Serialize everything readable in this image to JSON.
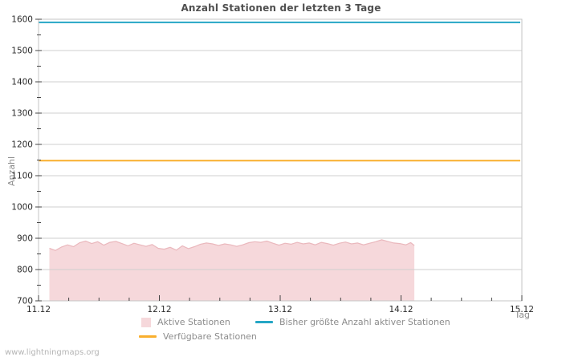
{
  "page": {
    "watermark": "www.lightningmaps.org"
  },
  "chart_data": {
    "type": "area",
    "title": "Anzahl Stationen der letzten 3 Tage",
    "xlabel": "Tag",
    "ylabel": "Anzahl",
    "ylim": [
      700,
      1600
    ],
    "xlim_days": [
      0,
      4
    ],
    "y_tick_step": 100,
    "y_minor_step": 50,
    "x_minor_step_days": 0.25,
    "grid": true,
    "legend_position": "bottom",
    "colors": {
      "grid": "#cfcfcf",
      "border": "#c4c4c4",
      "ticks": "#444444"
    },
    "x_ticks": [
      {
        "day": 0,
        "label": "11.12"
      },
      {
        "day": 1,
        "label": "12.12"
      },
      {
        "day": 2,
        "label": "13.12"
      },
      {
        "day": 3,
        "label": "14.12"
      },
      {
        "day": 4,
        "label": "15.12"
      }
    ],
    "y_ticks": [
      700,
      800,
      900,
      1000,
      1100,
      1200,
      1300,
      1400,
      1500,
      1600
    ],
    "series": [
      {
        "name": "Aktive Stationen",
        "type": "area",
        "color_edge": "#eab8bd",
        "color_fill": "rgba(235,168,175,0.45)",
        "x_days": [
          0.09,
          0.14,
          0.19,
          0.24,
          0.29,
          0.34,
          0.39,
          0.44,
          0.49,
          0.54,
          0.59,
          0.64,
          0.69,
          0.74,
          0.79,
          0.84,
          0.89,
          0.94,
          0.99,
          1.04,
          1.09,
          1.14,
          1.19,
          1.24,
          1.29,
          1.34,
          1.39,
          1.44,
          1.49,
          1.54,
          1.59,
          1.64,
          1.69,
          1.74,
          1.79,
          1.84,
          1.89,
          1.94,
          1.99,
          2.04,
          2.09,
          2.14,
          2.19,
          2.24,
          2.29,
          2.34,
          2.39,
          2.44,
          2.49,
          2.54,
          2.59,
          2.64,
          2.69,
          2.74,
          2.79,
          2.84,
          2.89,
          2.94,
          2.99,
          3.04,
          3.08,
          3.11
        ],
        "values": [
          868,
          861,
          872,
          879,
          873,
          886,
          891,
          883,
          889,
          878,
          887,
          890,
          883,
          876,
          884,
          879,
          874,
          880,
          868,
          865,
          871,
          862,
          876,
          867,
          873,
          881,
          885,
          882,
          877,
          882,
          879,
          874,
          879,
          886,
          889,
          887,
          891,
          884,
          878,
          884,
          881,
          887,
          882,
          885,
          879,
          887,
          883,
          878,
          884,
          888,
          882,
          885,
          879,
          884,
          889,
          895,
          890,
          885,
          883,
          879,
          886,
          877
        ]
      },
      {
        "name": "Bisher größte Anzahl aktiver Stationen",
        "type": "hline",
        "value": 1590,
        "color": "#25a6c5"
      },
      {
        "name": "Verfügbare Stationen",
        "type": "hline",
        "value": 1148,
        "color": "#f9af2e"
      }
    ]
  }
}
